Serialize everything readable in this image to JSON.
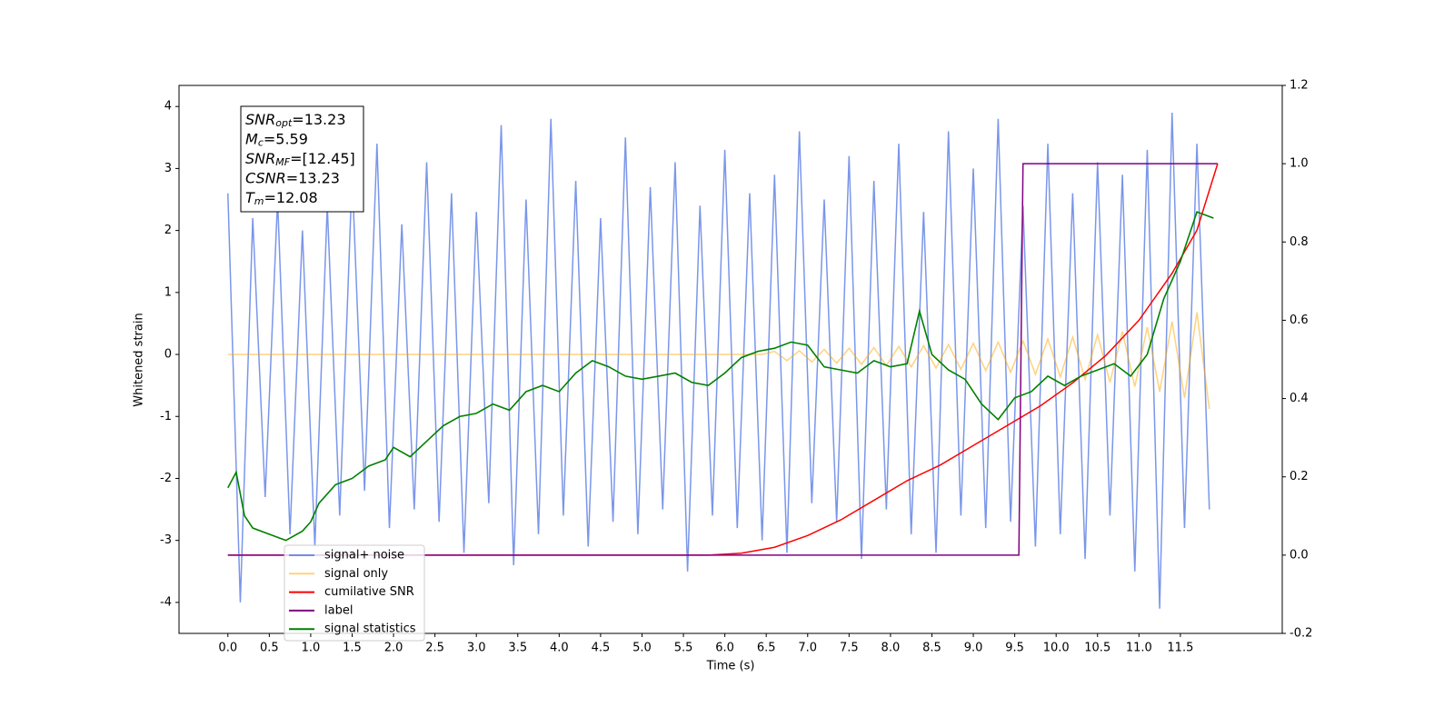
{
  "chart_data": {
    "type": "line",
    "xlabel": "Time (s)",
    "ylabel": "Whitened strain",
    "xlim": [
      -0.59,
      12.73
    ],
    "ylim": [
      -4.5,
      4.34
    ],
    "y2lim": [
      -0.2,
      1.2
    ],
    "xticks": [
      {
        "value": 0,
        "label": "0.0"
      },
      0.5,
      {
        "value": 1,
        "label": "1.0"
      },
      1.5,
      {
        "value": 2,
        "label": "2.0"
      },
      2.5,
      {
        "value": 3,
        "label": "3.0"
      },
      3.5,
      {
        "value": 4,
        "label": "4.0"
      },
      4.5,
      {
        "value": 5,
        "label": "5.0"
      },
      5.5,
      {
        "value": 6,
        "label": "6.0"
      },
      6.5,
      {
        "value": 7,
        "label": "7.0"
      },
      7.5,
      {
        "value": 8,
        "label": "8.0"
      },
      8.5,
      {
        "value": 9,
        "label": "9.0"
      },
      9.5,
      {
        "value": 10,
        "label": "10.0"
      },
      10.5,
      {
        "value": 11,
        "label": "11.0"
      },
      11.5
    ],
    "yticks": [
      -4,
      -3,
      -2,
      -1,
      0,
      1,
      2,
      3,
      4
    ],
    "y2ticks": [
      -0.2,
      {
        "value": 0,
        "label": "0.0"
      },
      0.2,
      0.4,
      0.6,
      0.8,
      {
        "value": 1,
        "label": "1.0"
      },
      1.2
    ],
    "annotation": [
      {
        "base": "SNR",
        "sub": "opt",
        "rest": "=13.23"
      },
      {
        "base": "M",
        "sub": "c",
        "rest": "=5.59"
      },
      {
        "base": "SNR",
        "sub": "MF",
        "rest": "=[12.45]"
      },
      {
        "base": "CSNR",
        "sub": null,
        "rest": "=13.23"
      },
      {
        "base": "T",
        "sub": "m",
        "rest": "=12.08"
      }
    ],
    "x": [
      0,
      0.15,
      0.3,
      0.45,
      0.6,
      0.75,
      0.9,
      1.05,
      1.2,
      1.35,
      1.5,
      1.65,
      1.8,
      1.95,
      2.1,
      2.25,
      2.4,
      2.55,
      2.7,
      2.85,
      3,
      3.15,
      3.3,
      3.45,
      3.6,
      3.75,
      3.9,
      4.05,
      4.2,
      4.35,
      4.5,
      4.65,
      4.8,
      4.95,
      5.1,
      5.25,
      5.4,
      5.55,
      5.7,
      5.85,
      6,
      6.15,
      6.3,
      6.45,
      6.6,
      6.75,
      6.9,
      7.05,
      7.2,
      7.35,
      7.5,
      7.65,
      7.8,
      7.95,
      8.1,
      8.25,
      8.4,
      8.55,
      8.7,
      8.85,
      9,
      9.15,
      9.3,
      9.45,
      9.6,
      9.75,
      9.9,
      10.05,
      10.2,
      10.35,
      10.5,
      10.65,
      10.8,
      10.95,
      11.1,
      11.25,
      11.4,
      11.55,
      11.7,
      11.85
    ],
    "series": [
      {
        "name": "signal+ noise",
        "color": "#4169e1",
        "opacity": 0.7,
        "values": [
          2.6,
          -4.0,
          2.2,
          -2.3,
          2.5,
          -2.9,
          2.0,
          -3.1,
          2.4,
          -2.6,
          2.9,
          -2.2,
          3.4,
          -2.8,
          2.1,
          -2.5,
          3.1,
          -2.7,
          2.6,
          -3.2,
          2.3,
          -2.4,
          3.7,
          -3.4,
          2.5,
          -2.9,
          3.8,
          -2.6,
          2.8,
          -3.1,
          2.2,
          -2.7,
          3.5,
          -2.9,
          2.7,
          -2.5,
          3.1,
          -3.5,
          2.4,
          -2.6,
          3.3,
          -2.8,
          2.6,
          -3.0,
          2.9,
          -3.2,
          3.6,
          -2.4,
          2.5,
          -2.7,
          3.2,
          -3.3,
          2.8,
          -2.5,
          3.4,
          -2.9,
          2.3,
          -3.2,
          3.6,
          -2.6,
          3.0,
          -2.8,
          3.8,
          -2.7,
          2.4,
          -3.1,
          3.4,
          -2.9,
          2.6,
          -3.3,
          3.1,
          -2.6,
          2.9,
          -3.5,
          3.3,
          -4.1,
          3.9,
          -2.8,
          3.4,
          -2.5
        ]
      },
      {
        "name": "signal only",
        "color": "#ffa500",
        "opacity": 0.5,
        "values": [
          0,
          0,
          0,
          0,
          0,
          0,
          0,
          0,
          0,
          0,
          0,
          0,
          0,
          0,
          0,
          0,
          0,
          0,
          0,
          0,
          0,
          0,
          0,
          0,
          0,
          0,
          0,
          0,
          0,
          0,
          0,
          0,
          0,
          0,
          0,
          0,
          0,
          0,
          0,
          0,
          0,
          0,
          0,
          0,
          0.05,
          -0.1,
          0.06,
          -0.12,
          0.08,
          -0.14,
          0.1,
          -0.16,
          0.11,
          -0.18,
          0.13,
          -0.2,
          0.14,
          -0.22,
          0.16,
          -0.24,
          0.18,
          -0.26,
          0.2,
          -0.29,
          0.22,
          -0.32,
          0.25,
          -0.36,
          0.28,
          -0.4,
          0.32,
          -0.45,
          0.37,
          -0.52,
          0.44,
          -0.6,
          0.53,
          -0.7,
          0.68,
          -0.88
        ]
      },
      {
        "name": "cumilative SNR",
        "color": "#ff0000",
        "opacity": 1,
        "axis": "y2",
        "x": [
          0,
          5.8,
          6.2,
          6.6,
          7.0,
          7.4,
          7.8,
          8.2,
          8.6,
          9.0,
          9.4,
          9.8,
          10.2,
          10.6,
          11.0,
          11.4,
          11.7,
          11.95
        ],
        "values": [
          0,
          0,
          0.005,
          0.02,
          0.05,
          0.09,
          0.14,
          0.19,
          0.23,
          0.28,
          0.33,
          0.38,
          0.44,
          0.51,
          0.6,
          0.72,
          0.83,
          1.0
        ]
      },
      {
        "name": "label",
        "color": "#800080",
        "opacity": 1,
        "axis": "y2",
        "x": [
          0,
          9.55,
          9.6,
          11.95
        ],
        "values": [
          0,
          0,
          1,
          1
        ]
      },
      {
        "name": "signal statistics",
        "color": "#008000",
        "opacity": 1,
        "x": [
          0,
          0.1,
          0.2,
          0.3,
          0.5,
          0.7,
          0.9,
          1.0,
          1.1,
          1.3,
          1.5,
          1.7,
          1.9,
          2.0,
          2.2,
          2.4,
          2.6,
          2.8,
          3.0,
          3.2,
          3.4,
          3.6,
          3.8,
          4.0,
          4.2,
          4.4,
          4.6,
          4.8,
          5.0,
          5.2,
          5.4,
          5.6,
          5.8,
          6.0,
          6.2,
          6.4,
          6.6,
          6.8,
          7.0,
          7.2,
          7.4,
          7.6,
          7.8,
          8.0,
          8.2,
          8.35,
          8.5,
          8.7,
          8.9,
          9.1,
          9.3,
          9.5,
          9.7,
          9.9,
          10.1,
          10.3,
          10.5,
          10.7,
          10.9,
          11.1,
          11.3,
          11.5,
          11.7,
          11.9
        ],
        "values": [
          -2.15,
          -1.9,
          -2.6,
          -2.8,
          -2.9,
          -3.0,
          -2.85,
          -2.7,
          -2.4,
          -2.1,
          -2.0,
          -1.8,
          -1.7,
          -1.5,
          -1.65,
          -1.4,
          -1.15,
          -1.0,
          -0.95,
          -0.8,
          -0.9,
          -0.6,
          -0.5,
          -0.6,
          -0.3,
          -0.1,
          -0.2,
          -0.35,
          -0.4,
          -0.35,
          -0.3,
          -0.45,
          -0.5,
          -0.3,
          -0.05,
          0.05,
          0.1,
          0.2,
          0.15,
          -0.2,
          -0.25,
          -0.3,
          -0.1,
          -0.2,
          -0.15,
          0.7,
          0.0,
          -0.25,
          -0.4,
          -0.8,
          -1.05,
          -0.7,
          -0.6,
          -0.35,
          -0.5,
          -0.35,
          -0.25,
          -0.15,
          -0.35,
          0.0,
          0.9,
          1.5,
          2.3,
          2.2
        ]
      }
    ]
  }
}
